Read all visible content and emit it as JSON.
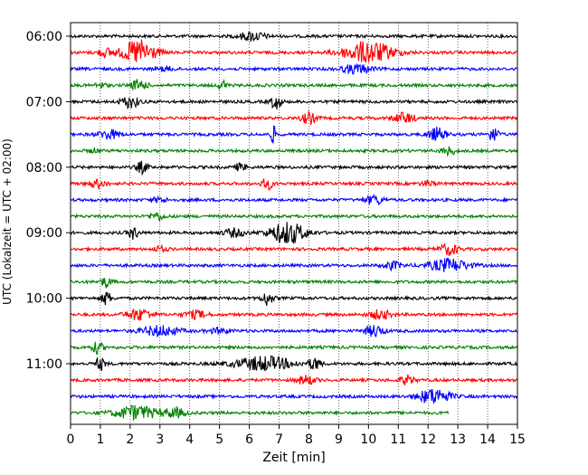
{
  "chart_data": {
    "type": "line",
    "title": "",
    "xlabel": "Zeit  [min]",
    "ylabel": "UTC (Lokalzeit = UTC + 02:00)",
    "xlim": [
      0,
      15
    ],
    "x_ticks": [
      "0",
      "1",
      "2",
      "3",
      "4",
      "5",
      "6",
      "7",
      "8",
      "9",
      "10",
      "11",
      "12",
      "13",
      "14",
      "15"
    ],
    "y_ticks": [
      {
        "label": "06:00",
        "row": 0
      },
      {
        "label": "07:00",
        "row": 4
      },
      {
        "label": "08:00",
        "row": 8
      },
      {
        "label": "09:00",
        "row": 12
      },
      {
        "label": "10:00",
        "row": 16
      },
      {
        "label": "11:00",
        "row": 20
      }
    ],
    "grid": "vertical dotted at each minute",
    "colors": [
      "#000000",
      "#ff0000",
      "#0000ff",
      "#008000"
    ],
    "traces": [
      {
        "start": "06:00",
        "color": "#000000",
        "end_min": 15,
        "bursts": [
          [
            6.1,
            0.7,
            0.35
          ]
        ]
      },
      {
        "start": "06:15",
        "color": "#ff0000",
        "end_min": 15,
        "bursts": [
          [
            2.3,
            0.9,
            1.0
          ],
          [
            10.0,
            1.4,
            0.85
          ],
          [
            1.2,
            0.5,
            0.3
          ]
        ]
      },
      {
        "start": "06:30",
        "color": "#0000ff",
        "end_min": 15,
        "bursts": [
          [
            9.6,
            0.8,
            0.35
          ],
          [
            3.2,
            0.5,
            0.15
          ]
        ]
      },
      {
        "start": "06:45",
        "color": "#008000",
        "end_min": 15,
        "bursts": [
          [
            2.3,
            0.4,
            0.45
          ],
          [
            5.1,
            0.2,
            0.45
          ],
          [
            1.0,
            0.3,
            0.2
          ]
        ]
      },
      {
        "start": "07:00",
        "color": "#000000",
        "end_min": 15,
        "bursts": [
          [
            2.0,
            0.5,
            0.45
          ],
          [
            6.9,
            0.3,
            0.55
          ]
        ]
      },
      {
        "start": "07:15",
        "color": "#ff0000",
        "end_min": 15,
        "bursts": [
          [
            8.0,
            0.4,
            0.45
          ],
          [
            11.2,
            0.6,
            0.4
          ]
        ]
      },
      {
        "start": "07:30",
        "color": "#0000ff",
        "end_min": 15,
        "bursts": [
          [
            1.3,
            0.6,
            0.35
          ],
          [
            6.8,
            0.15,
            0.7
          ],
          [
            12.3,
            0.5,
            0.5
          ],
          [
            14.2,
            0.3,
            0.55
          ]
        ]
      },
      {
        "start": "07:45",
        "color": "#008000",
        "end_min": 15,
        "bursts": [
          [
            12.7,
            0.4,
            0.3
          ],
          [
            0.8,
            0.3,
            0.15
          ]
        ]
      },
      {
        "start": "08:00",
        "color": "#000000",
        "end_min": 15,
        "bursts": [
          [
            2.4,
            0.3,
            0.45
          ],
          [
            5.7,
            0.3,
            0.3
          ]
        ]
      },
      {
        "start": "08:15",
        "color": "#ff0000",
        "end_min": 15,
        "bursts": [
          [
            0.9,
            0.5,
            0.3
          ],
          [
            6.6,
            0.3,
            0.45
          ],
          [
            12.0,
            0.4,
            0.2
          ]
        ]
      },
      {
        "start": "08:30",
        "color": "#0000ff",
        "end_min": 15,
        "bursts": [
          [
            10.2,
            0.5,
            0.35
          ],
          [
            3.0,
            0.4,
            0.2
          ]
        ]
      },
      {
        "start": "08:45",
        "color": "#008000",
        "end_min": 15,
        "bursts": [
          [
            2.9,
            0.4,
            0.3
          ]
        ]
      },
      {
        "start": "09:00",
        "color": "#000000",
        "end_min": 15,
        "bursts": [
          [
            2.1,
            0.3,
            0.45
          ],
          [
            7.3,
            1.0,
            0.85
          ],
          [
            5.5,
            0.6,
            0.3
          ]
        ]
      },
      {
        "start": "09:15",
        "color": "#ff0000",
        "end_min": 15,
        "bursts": [
          [
            12.7,
            0.5,
            0.45
          ],
          [
            3.0,
            0.4,
            0.2
          ]
        ]
      },
      {
        "start": "09:30",
        "color": "#0000ff",
        "end_min": 15,
        "bursts": [
          [
            12.7,
            1.1,
            0.5
          ],
          [
            10.8,
            0.5,
            0.3
          ]
        ]
      },
      {
        "start": "09:45",
        "color": "#008000",
        "end_min": 15,
        "bursts": [
          [
            1.2,
            0.3,
            0.4
          ]
        ]
      },
      {
        "start": "10:00",
        "color": "#000000",
        "end_min": 15,
        "bursts": [
          [
            1.2,
            0.25,
            0.55
          ],
          [
            6.6,
            0.3,
            0.55
          ]
        ]
      },
      {
        "start": "10:15",
        "color": "#ff0000",
        "end_min": 15,
        "bursts": [
          [
            2.3,
            0.7,
            0.45
          ],
          [
            4.2,
            0.6,
            0.3
          ],
          [
            10.4,
            0.6,
            0.35
          ]
        ]
      },
      {
        "start": "10:30",
        "color": "#0000ff",
        "end_min": 15,
        "bursts": [
          [
            3.0,
            1.0,
            0.4
          ],
          [
            10.2,
            0.5,
            0.45
          ],
          [
            5.0,
            0.6,
            0.2
          ]
        ]
      },
      {
        "start": "10:45",
        "color": "#008000",
        "end_min": 15,
        "bursts": [
          [
            0.9,
            0.3,
            0.45
          ]
        ]
      },
      {
        "start": "11:00",
        "color": "#000000",
        "end_min": 15,
        "bursts": [
          [
            1.0,
            0.25,
            0.5
          ],
          [
            6.5,
            1.6,
            0.55
          ],
          [
            8.2,
            0.3,
            0.5
          ]
        ]
      },
      {
        "start": "11:15",
        "color": "#ff0000",
        "end_min": 15,
        "bursts": [
          [
            7.9,
            0.5,
            0.35
          ],
          [
            11.3,
            0.4,
            0.35
          ]
        ]
      },
      {
        "start": "11:30",
        "color": "#0000ff",
        "end_min": 15,
        "bursts": [
          [
            12.2,
            0.9,
            0.6
          ]
        ]
      },
      {
        "start": "11:45",
        "color": "#008000",
        "end_min": 12.7,
        "bursts": [
          [
            2.2,
            1.2,
            0.55
          ],
          [
            3.5,
            0.6,
            0.35
          ]
        ]
      }
    ]
  }
}
